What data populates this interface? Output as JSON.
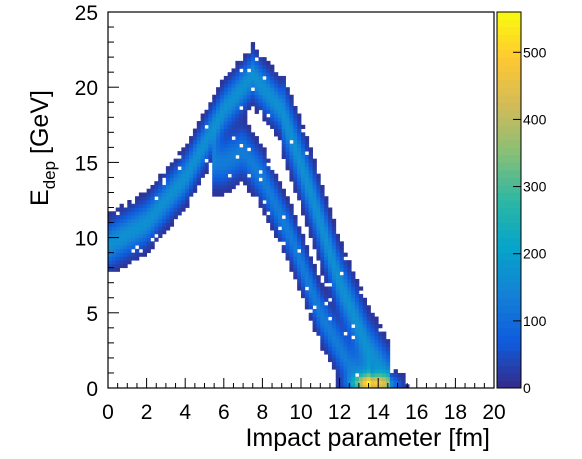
{
  "chart_data": {
    "type": "heatmap",
    "xlabel": "Impact parameter [fm]",
    "ylabel": "E",
    "ylabel_subscript": "dep",
    "ylabel_unit": " [GeV]",
    "xlim": [
      0,
      20
    ],
    "ylim": [
      0,
      25
    ],
    "x_ticks": [
      0,
      2,
      4,
      6,
      8,
      10,
      12,
      14,
      16,
      18,
      20
    ],
    "y_ticks": [
      0,
      5,
      10,
      15,
      20,
      25
    ],
    "colorbar": {
      "range": [
        0,
        560
      ],
      "ticks": [
        0,
        100,
        200,
        300,
        400,
        500
      ],
      "palette": [
        "#352a87",
        "#0f5cdd",
        "#1481d6",
        "#06a4ca",
        "#2eb7a4",
        "#87bf77",
        "#d1bb59",
        "#fec832",
        "#f9fb0e"
      ]
    },
    "distribution": {
      "description_ridges": [
        {
          "name": "upper band",
          "points": [
            [
              0,
              9.5
            ],
            [
              2,
              11.0
            ],
            [
              4,
              14.0
            ],
            [
              6,
              18.5
            ],
            [
              7.5,
              20.8
            ],
            [
              9,
              18.5
            ],
            [
              10.5,
              13.0
            ],
            [
              12,
              7.0
            ],
            [
              13.5,
              2.5
            ],
            [
              14.5,
              0.5
            ]
          ]
        },
        {
          "name": "lower band",
          "points": [
            [
              6,
              15.0
            ],
            [
              7,
              15.8
            ],
            [
              8,
              14.0
            ],
            [
              9.5,
              10.0
            ],
            [
              11,
              5.0
            ],
            [
              12.5,
              1.5
            ],
            [
              13.5,
              0.2
            ]
          ]
        }
      ],
      "peak": {
        "x": 13.7,
        "y": 0.3,
        "count": 560
      }
    }
  }
}
